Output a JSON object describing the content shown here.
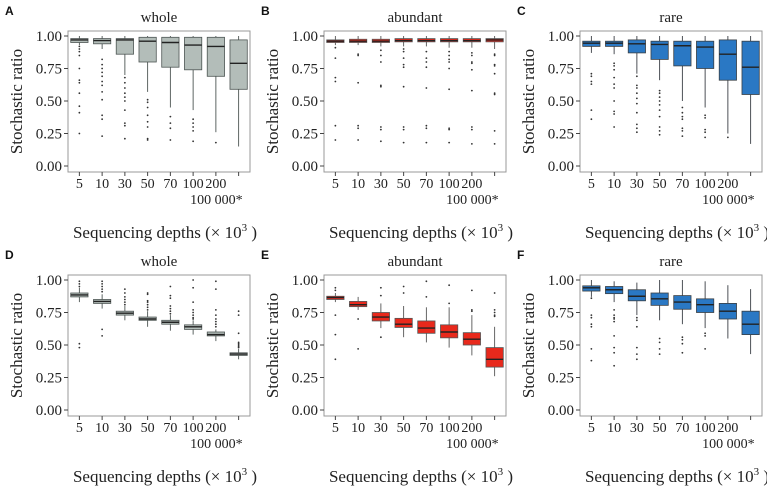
{
  "chart_data": [
    {
      "panel": "A",
      "type": "box",
      "title": "whole",
      "ylabel": "Stochastic ratio",
      "xlabel": "Sequencing depths (× 10",
      "xlabel_sup": "3",
      "xlabel_end": " )",
      "ylim": [
        0,
        1
      ],
      "yticks": [
        "0.00",
        "0.25",
        "0.50",
        "0.75",
        "1.00"
      ],
      "categories": [
        "5",
        "10",
        "30",
        "50",
        "70",
        "100",
        "200",
        "100 000*"
      ],
      "fill": "#b3bdb9",
      "stroke": "#4d5553",
      "boxes": [
        {
          "whisker_low": 0.93,
          "q1": 0.95,
          "median": 0.97,
          "q3": 0.98,
          "whisker_high": 1.0,
          "outliers": [
            0.92,
            0.9,
            0.88,
            0.85,
            0.75,
            0.66,
            0.64,
            0.56,
            0.46,
            0.41,
            0.25
          ]
        },
        {
          "whisker_low": 0.9,
          "q1": 0.94,
          "median": 0.965,
          "q3": 0.98,
          "whisker_high": 1.0,
          "outliers": [
            0.82,
            0.78,
            0.75,
            0.72,
            0.69,
            0.65,
            0.62,
            0.57,
            0.51,
            0.39,
            0.36,
            0.23
          ]
        },
        {
          "whisker_low": 0.7,
          "q1": 0.86,
          "median": 0.97,
          "q3": 0.98,
          "whisker_high": 1.0,
          "outliers": [
            0.68,
            0.64,
            0.6,
            0.56,
            0.53,
            0.5,
            0.43,
            0.33,
            0.31,
            0.21
          ]
        },
        {
          "whisker_low": 0.57,
          "q1": 0.8,
          "median": 0.96,
          "q3": 0.99,
          "whisker_high": 1.0,
          "outliers": [
            0.51,
            0.49,
            0.45,
            0.39,
            0.34,
            0.3,
            0.21,
            0.2
          ]
        },
        {
          "whisker_low": 0.45,
          "q1": 0.76,
          "median": 0.95,
          "q3": 0.99,
          "whisker_high": 1.0,
          "outliers": [
            0.38,
            0.33,
            0.29,
            0.2
          ]
        },
        {
          "whisker_low": 0.43,
          "q1": 0.74,
          "median": 0.93,
          "q3": 0.99,
          "whisker_high": 1.0,
          "outliers": [
            0.36,
            0.33,
            0.3,
            0.27,
            0.19
          ]
        },
        {
          "whisker_low": 0.26,
          "q1": 0.69,
          "median": 0.92,
          "q3": 0.99,
          "whisker_high": 1.0,
          "outliers": [
            0.18
          ]
        },
        {
          "whisker_low": 0.15,
          "q1": 0.59,
          "median": 0.79,
          "q3": 0.97,
          "whisker_high": 1.0,
          "outliers": []
        }
      ]
    },
    {
      "panel": "B",
      "type": "box",
      "title": "abundant",
      "ylabel": "Stochastic ratio",
      "xlabel": "Sequencing depths (× 10",
      "xlabel_sup": "3",
      "xlabel_end": " )",
      "ylim": [
        0,
        1
      ],
      "yticks": [
        "0.00",
        "0.25",
        "0.50",
        "0.75",
        "1.00"
      ],
      "categories": [
        "5",
        "10",
        "30",
        "50",
        "70",
        "100",
        "200",
        "100 000*"
      ],
      "fill": "#e8291c",
      "stroke": "#555555",
      "boxes": [
        {
          "whisker_low": 0.93,
          "q1": 0.95,
          "median": 0.96,
          "q3": 0.97,
          "whisker_high": 1.0,
          "outliers": [
            0.91,
            0.83,
            0.68,
            0.65,
            0.31,
            0.2
          ]
        },
        {
          "whisker_low": 0.93,
          "q1": 0.95,
          "median": 0.96,
          "q3": 0.975,
          "whisker_high": 1.0,
          "outliers": [
            0.86,
            0.85,
            0.64,
            0.31,
            0.29,
            0.2
          ]
        },
        {
          "whisker_low": 0.92,
          "q1": 0.95,
          "median": 0.96,
          "q3": 0.975,
          "whisker_high": 1.0,
          "outliers": [
            0.89,
            0.85,
            0.8,
            0.62,
            0.61,
            0.3,
            0.28,
            0.19
          ]
        },
        {
          "whisker_low": 0.92,
          "q1": 0.955,
          "median": 0.965,
          "q3": 0.98,
          "whisker_high": 1.0,
          "outliers": [
            0.9,
            0.88,
            0.83,
            0.78,
            0.76,
            0.61,
            0.3,
            0.28,
            0.18
          ]
        },
        {
          "whisker_low": 0.92,
          "q1": 0.955,
          "median": 0.965,
          "q3": 0.98,
          "whisker_high": 1.0,
          "outliers": [
            0.88,
            0.83,
            0.8,
            0.76,
            0.6,
            0.31,
            0.29,
            0.18
          ]
        },
        {
          "whisker_low": 0.91,
          "q1": 0.955,
          "median": 0.965,
          "q3": 0.98,
          "whisker_high": 1.0,
          "outliers": [
            0.88,
            0.85,
            0.82,
            0.8,
            0.75,
            0.59,
            0.29,
            0.28,
            0.18
          ]
        },
        {
          "whisker_low": 0.91,
          "q1": 0.955,
          "median": 0.965,
          "q3": 0.98,
          "whisker_high": 1.0,
          "outliers": [
            0.87,
            0.85,
            0.8,
            0.79,
            0.74,
            0.58,
            0.3,
            0.28,
            0.17
          ]
        },
        {
          "whisker_low": 0.9,
          "q1": 0.955,
          "median": 0.97,
          "q3": 0.98,
          "whisker_high": 1.0,
          "outliers": [
            0.86,
            0.85,
            0.78,
            0.77,
            0.71,
            0.56,
            0.55,
            0.27,
            0.17
          ]
        }
      ]
    },
    {
      "panel": "C",
      "type": "box",
      "title": "rare",
      "ylabel": "Stochastic ratio",
      "xlabel": "Sequencing depths (× 10",
      "xlabel_sup": "3",
      "xlabel_end": " )",
      "ylim": [
        0,
        1
      ],
      "yticks": [
        "0.00",
        "0.25",
        "0.50",
        "0.75",
        "1.00"
      ],
      "categories": [
        "5",
        "10",
        "30",
        "50",
        "70",
        "100",
        "200",
        "100 000*"
      ],
      "fill": "#2a78c4",
      "stroke": "#3a3f44",
      "boxes": [
        {
          "whisker_low": 0.87,
          "q1": 0.92,
          "median": 0.945,
          "q3": 0.96,
          "whisker_high": 1.0,
          "outliers": [
            0.71,
            0.69,
            0.65,
            0.63,
            0.43,
            0.36
          ]
        },
        {
          "whisker_low": 0.86,
          "q1": 0.92,
          "median": 0.945,
          "q3": 0.96,
          "whisker_high": 1.0,
          "outliers": [
            0.79,
            0.77,
            0.74,
            0.68,
            0.63,
            0.6,
            0.5,
            0.42,
            0.4,
            0.3
          ]
        },
        {
          "whisker_low": 0.71,
          "q1": 0.87,
          "median": 0.94,
          "q3": 0.97,
          "whisker_high": 1.0,
          "outliers": [
            0.69,
            0.62,
            0.6,
            0.56,
            0.52,
            0.48,
            0.41,
            0.32,
            0.29,
            0.26
          ]
        },
        {
          "whisker_low": 0.66,
          "q1": 0.82,
          "median": 0.935,
          "q3": 0.96,
          "whisker_high": 1.0,
          "outliers": [
            0.58,
            0.56,
            0.53,
            0.5,
            0.47,
            0.43,
            0.38,
            0.3,
            0.27,
            0.24
          ]
        },
        {
          "whisker_low": 0.5,
          "q1": 0.77,
          "median": 0.925,
          "q3": 0.96,
          "whisker_high": 1.0,
          "outliers": [
            0.45,
            0.41,
            0.38,
            0.36,
            0.29,
            0.27,
            0.23
          ]
        },
        {
          "whisker_low": 0.45,
          "q1": 0.75,
          "median": 0.915,
          "q3": 0.96,
          "whisker_high": 1.0,
          "outliers": [
            0.39,
            0.37,
            0.28,
            0.26,
            0.22
          ]
        },
        {
          "whisker_low": 0.25,
          "q1": 0.66,
          "median": 0.86,
          "q3": 0.97,
          "whisker_high": 1.0,
          "outliers": [
            0.22
          ]
        },
        {
          "whisker_low": 0.17,
          "q1": 0.55,
          "median": 0.76,
          "q3": 0.96,
          "whisker_high": 1.0,
          "outliers": []
        }
      ]
    },
    {
      "panel": "D",
      "type": "box",
      "title": "whole",
      "ylabel": "Stochastic ratio",
      "xlabel": "Sequencing depths (× 10",
      "xlabel_sup": "3",
      "xlabel_end": " )",
      "ylim": [
        0,
        1
      ],
      "yticks": [
        "0.00",
        "0.25",
        "0.50",
        "0.75",
        "1.00"
      ],
      "categories": [
        "5",
        "10",
        "30",
        "50",
        "70",
        "100",
        "200",
        "100 000*"
      ],
      "fill": "#b3bdb9",
      "stroke": "#4d5553",
      "boxes": [
        {
          "whisker_low": 0.83,
          "q1": 0.87,
          "median": 0.885,
          "q3": 0.9,
          "whisker_high": 0.94,
          "outliers": [
            0.99,
            0.97,
            0.95,
            0.51,
            0.48
          ]
        },
        {
          "whisker_low": 0.78,
          "q1": 0.82,
          "median": 0.835,
          "q3": 0.85,
          "whisker_high": 0.89,
          "outliers": [
            0.99,
            0.97,
            0.95,
            0.93,
            0.91,
            0.62,
            0.57
          ]
        },
        {
          "whisker_low": 0.69,
          "q1": 0.73,
          "median": 0.745,
          "q3": 0.76,
          "whisker_high": 0.8,
          "outliers": [
            0.93,
            0.9,
            0.87,
            0.85,
            0.83,
            0.81
          ]
        },
        {
          "whisker_low": 0.64,
          "q1": 0.69,
          "median": 0.7,
          "q3": 0.715,
          "whisker_high": 0.76,
          "outliers": [
            0.9,
            0.89,
            0.84,
            0.83,
            0.81,
            0.79,
            0.77
          ]
        },
        {
          "whisker_low": 0.61,
          "q1": 0.66,
          "median": 0.675,
          "q3": 0.69,
          "whisker_high": 0.73,
          "outliers": [
            0.95,
            0.88,
            0.86,
            0.8,
            0.78,
            0.76,
            0.74
          ]
        },
        {
          "whisker_low": 0.58,
          "q1": 0.62,
          "median": 0.64,
          "q3": 0.655,
          "whisker_high": 0.69,
          "outliers": [
            1.0,
            0.94,
            0.83,
            0.77,
            0.75,
            0.73,
            0.71,
            0.7
          ]
        },
        {
          "whisker_low": 0.53,
          "q1": 0.57,
          "median": 0.58,
          "q3": 0.6,
          "whisker_high": 0.62,
          "outliers": [
            0.99,
            0.93,
            0.77,
            0.73,
            0.7,
            0.68,
            0.66,
            0.64
          ]
        },
        {
          "whisker_low": 0.39,
          "q1": 0.42,
          "median": 0.43,
          "q3": 0.44,
          "whisker_high": 0.47,
          "outliers": [
            0.76,
            0.73,
            0.59,
            0.52,
            0.51,
            0.5,
            0.49,
            0.48
          ]
        }
      ]
    },
    {
      "panel": "E",
      "type": "box",
      "title": "abundant",
      "ylabel": "Stochastic ratio",
      "xlabel": "Sequencing depths (× 10",
      "xlabel_sup": "3",
      "xlabel_end": " )",
      "ylim": [
        0,
        1
      ],
      "yticks": [
        "0.00",
        "0.25",
        "0.50",
        "0.75",
        "1.00"
      ],
      "categories": [
        "5",
        "10",
        "30",
        "50",
        "70",
        "100",
        "200",
        "100 000*"
      ],
      "fill": "#e8291c",
      "stroke": "#555555",
      "boxes": [
        {
          "whisker_low": 0.83,
          "q1": 0.85,
          "median": 0.865,
          "q3": 0.875,
          "whisker_high": 0.9,
          "outliers": [
            0.94,
            0.92,
            0.73,
            0.58,
            0.39
          ]
        },
        {
          "whisker_low": 0.77,
          "q1": 0.795,
          "median": 0.81,
          "q3": 0.835,
          "whisker_high": 0.87,
          "outliers": [
            0.7,
            0.47
          ]
        },
        {
          "whisker_low": 0.63,
          "q1": 0.685,
          "median": 0.715,
          "q3": 0.75,
          "whisker_high": 0.82,
          "outliers": [
            0.94,
            0.88,
            0.56
          ]
        },
        {
          "whisker_low": 0.56,
          "q1": 0.635,
          "median": 0.66,
          "q3": 0.705,
          "whisker_high": 0.8,
          "outliers": [
            0.95,
            0.9
          ]
        },
        {
          "whisker_low": 0.52,
          "q1": 0.59,
          "median": 0.63,
          "q3": 0.685,
          "whisker_high": 0.79,
          "outliers": [
            0.99,
            0.87
          ]
        },
        {
          "whisker_low": 0.48,
          "q1": 0.555,
          "median": 0.6,
          "q3": 0.655,
          "whisker_high": 0.79,
          "outliers": [
            0.96,
            0.82
          ]
        },
        {
          "whisker_low": 0.42,
          "q1": 0.5,
          "median": 0.545,
          "q3": 0.595,
          "whisker_high": 0.73,
          "outliers": [
            0.92,
            0.77,
            0.76
          ]
        },
        {
          "whisker_low": 0.26,
          "q1": 0.33,
          "median": 0.39,
          "q3": 0.48,
          "whisker_high": 0.64,
          "outliers": [
            0.9,
            0.77,
            0.75,
            0.73,
            0.72
          ]
        }
      ]
    },
    {
      "panel": "F",
      "type": "box",
      "title": "rare",
      "ylabel": "Stochastic ratio",
      "xlabel": "Sequencing depths (× 10",
      "xlabel_sup": "3",
      "xlabel_end": " )",
      "ylim": [
        0,
        1
      ],
      "yticks": [
        "0.00",
        "0.25",
        "0.50",
        "0.75",
        "1.00"
      ],
      "categories": [
        "5",
        "10",
        "30",
        "50",
        "70",
        "100",
        "200",
        "100 000*"
      ],
      "fill": "#2a78c4",
      "stroke": "#3a3f44",
      "boxes": [
        {
          "whisker_low": 0.87,
          "q1": 0.915,
          "median": 0.94,
          "q3": 0.955,
          "whisker_high": 1.0,
          "outliers": [
            0.86,
            0.73,
            0.71,
            0.66,
            0.64,
            0.47,
            0.38
          ]
        },
        {
          "whisker_low": 0.83,
          "q1": 0.895,
          "median": 0.925,
          "q3": 0.95,
          "whisker_high": 0.99,
          "outliers": [
            0.77,
            0.73,
            0.71,
            0.7,
            0.68,
            0.57,
            0.48,
            0.44,
            0.34
          ]
        },
        {
          "whisker_low": 0.73,
          "q1": 0.84,
          "median": 0.875,
          "q3": 0.925,
          "whisker_high": 0.98,
          "outliers": [
            0.71,
            0.69,
            0.64,
            0.48,
            0.43,
            0.39
          ]
        },
        {
          "whisker_low": 0.69,
          "q1": 0.805,
          "median": 0.855,
          "q3": 0.9,
          "whisker_high": 1.0,
          "outliers": [
            0.55,
            0.52,
            0.47,
            0.43
          ]
        },
        {
          "whisker_low": 0.66,
          "q1": 0.775,
          "median": 0.83,
          "q3": 0.88,
          "whisker_high": 1.0,
          "outliers": [
            0.56,
            0.54,
            0.51,
            0.44
          ]
        },
        {
          "whisker_low": 0.63,
          "q1": 0.75,
          "median": 0.81,
          "q3": 0.855,
          "whisker_high": 0.99,
          "outliers": [
            0.59,
            0.57,
            0.47
          ]
        },
        {
          "whisker_low": 0.55,
          "q1": 0.7,
          "median": 0.76,
          "q3": 0.82,
          "whisker_high": 0.96,
          "outliers": []
        },
        {
          "whisker_low": 0.43,
          "q1": 0.58,
          "median": 0.66,
          "q3": 0.76,
          "whisker_high": 0.93,
          "outliers": []
        }
      ]
    }
  ]
}
